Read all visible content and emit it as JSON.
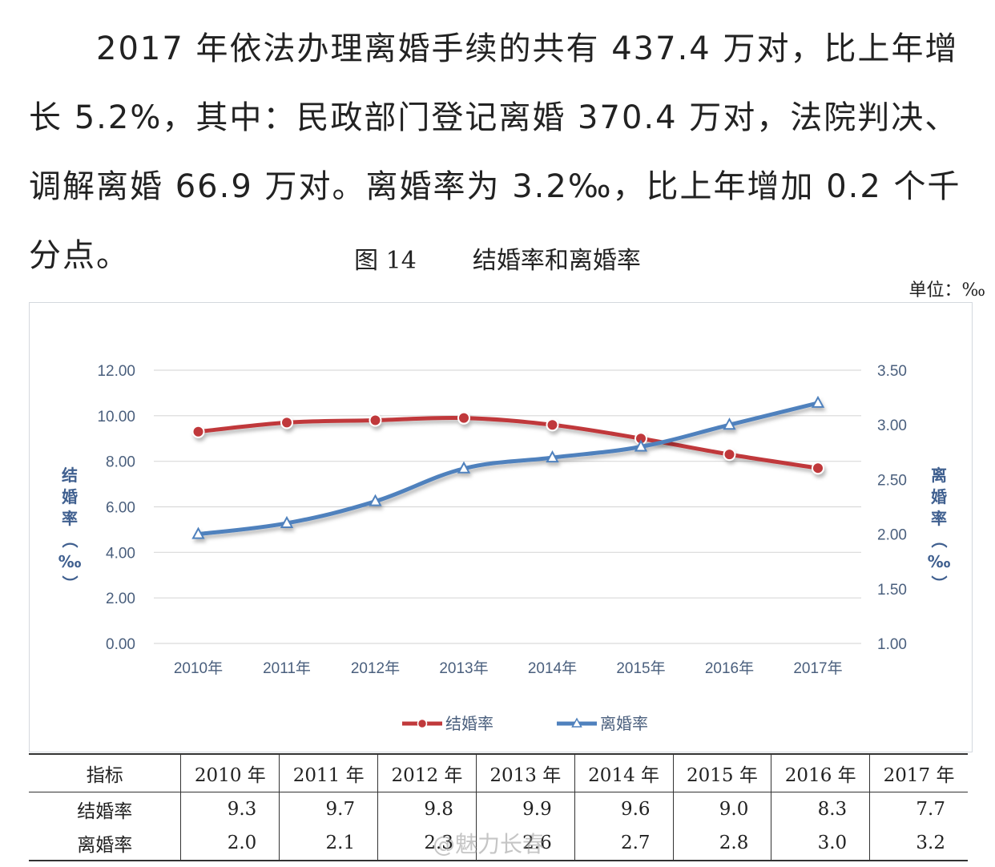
{
  "paragraph": {
    "text": "2017 年依法办理离婚手续的共有 437.4 万对，比上年增长 5.2%，其中：民政部门登记离婚 370.4 万对，法院判决、调解离婚 66.9 万对。离婚率为 3.2‰，比上年增加 0.2 个千分点。"
  },
  "figure": {
    "number": "图 14",
    "title": "结婚率和离婚率",
    "unit": "单位：‰"
  },
  "colors": {
    "marriage": "#c0393b",
    "divorce": "#4f81bd",
    "grid": "#d9d9d9",
    "axis_text": "#4a5f7d"
  },
  "chart_data": {
    "type": "line",
    "categories": [
      "2010年",
      "2011年",
      "2012年",
      "2013年",
      "2014年",
      "2015年",
      "2016年",
      "2017年"
    ],
    "series": [
      {
        "name": "结婚率",
        "axis": "left",
        "marker": "circle",
        "values": [
          9.3,
          9.7,
          9.8,
          9.9,
          9.6,
          9.0,
          8.3,
          7.7
        ]
      },
      {
        "name": "离婚率",
        "axis": "right",
        "marker": "triangle",
        "values": [
          2.0,
          2.1,
          2.3,
          2.6,
          2.7,
          2.8,
          3.0,
          3.2
        ]
      }
    ],
    "left_axis": {
      "title": "结婚率（‰）",
      "ylim": [
        0,
        12
      ],
      "ticks": [
        "0.00",
        "2.00",
        "4.00",
        "6.00",
        "8.00",
        "10.00",
        "12.00"
      ]
    },
    "right_axis": {
      "title": "离婚率（‰）",
      "ylim": [
        1,
        3.5
      ],
      "ticks": [
        "1.00",
        "1.50",
        "2.00",
        "2.50",
        "3.00",
        "3.50"
      ]
    },
    "grid": true,
    "legend": "bottom"
  },
  "table": {
    "header": [
      "指标",
      "2010 年",
      "2011 年",
      "2012 年",
      "2013 年",
      "2014 年",
      "2015 年",
      "2016 年",
      "2017 年"
    ],
    "rows": [
      {
        "label": "结婚率",
        "cells": [
          "9.3",
          "9.7",
          "9.8",
          "9.9",
          "9.6",
          "9.0",
          "8.3",
          "7.7"
        ]
      },
      {
        "label": "离婚率",
        "cells": [
          "2.0",
          "2.1",
          "2.3",
          "2.6",
          "2.7",
          "2.8",
          "3.0",
          "3.2"
        ]
      }
    ]
  },
  "watermark": "@魅力长春"
}
